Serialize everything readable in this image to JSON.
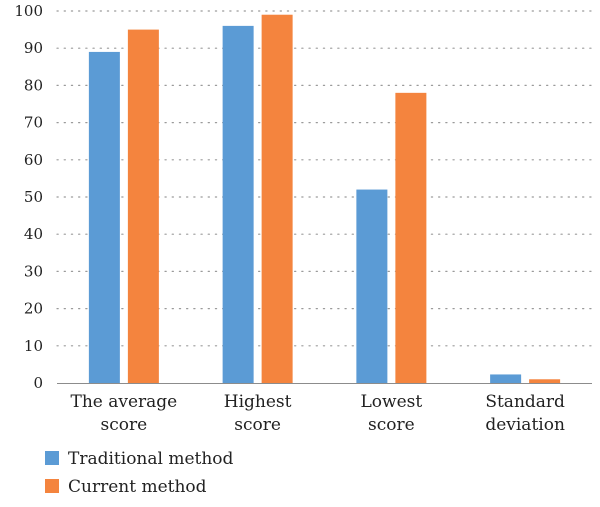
{
  "chart_data": {
    "type": "bar",
    "categories": [
      [
        "The average",
        "score"
      ],
      [
        "Highest",
        "score"
      ],
      [
        "Lowest",
        "score"
      ],
      [
        "Standard",
        "deviation"
      ]
    ],
    "series": [
      {
        "name": "Traditional method",
        "color": "#5B9BD5",
        "values": [
          89,
          96,
          52,
          2.3
        ]
      },
      {
        "name": "Current method",
        "color": "#F4843E",
        "values": [
          95,
          99,
          78,
          1.0
        ]
      }
    ],
    "yticks": [
      0,
      10,
      20,
      30,
      40,
      50,
      60,
      70,
      80,
      90,
      100
    ],
    "ylim": [
      0,
      100
    ],
    "grid": true,
    "legend_position": "bottom-left"
  }
}
